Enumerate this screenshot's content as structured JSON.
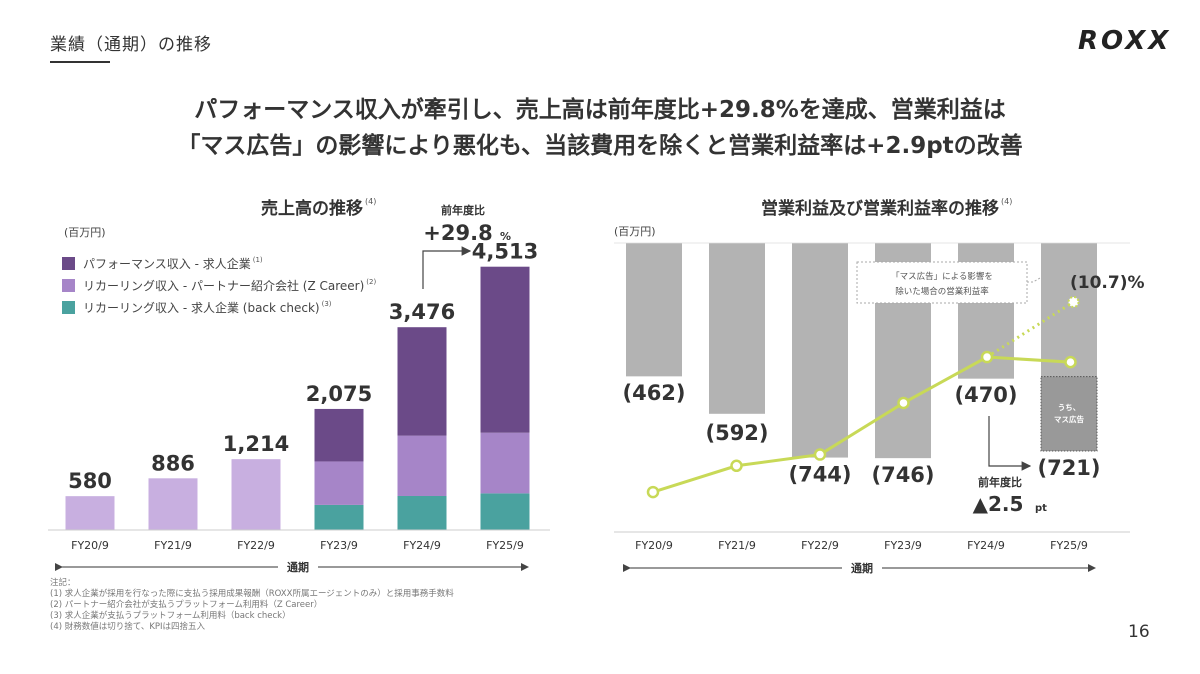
{
  "header": {
    "section_title": "業績（通期）の推移",
    "logo": "ROXX",
    "page_number": "16"
  },
  "headline": {
    "line1": "パフォーマンス収入が牽引し、売上高は前年度比+29.8%を達成、営業利益は",
    "line2": "「マス広告」の影響により悪化も、当該費用を除くと営業利益率は+2.9ptの改善"
  },
  "chart_data": [
    {
      "type": "bar",
      "stacked": true,
      "title": "売上高の推移",
      "title_note": "(4)",
      "unit": "(百万円)",
      "categories": [
        "FY20/9",
        "FY21/9",
        "FY22/9",
        "FY23/9",
        "FY24/9",
        "FY25/9"
      ],
      "series": [
        {
          "name": "パフォーマンス収入 - 求人企業",
          "note": "(1)",
          "color": "#6b4a88",
          "values": [
            0,
            0,
            0,
            900,
            1859,
            2845
          ]
        },
        {
          "name": "リカーリング収入 - パートナー紹介会社 (Z Career)",
          "note": "(2)",
          "color": "#a685c8",
          "color_fy20_22": "#c8afe0",
          "values": [
            580,
            886,
            1214,
            745,
            1034,
            1040
          ]
        },
        {
          "name": "リカーリング収入 - 求人企業 (back check)",
          "note": "(3)",
          "color": "#4aa29f",
          "values": [
            0,
            0,
            0,
            430,
            583,
            628
          ]
        }
      ],
      "totals": [
        580,
        886,
        1214,
        2075,
        3476,
        4513
      ],
      "total_labels": [
        "580",
        "886",
        "1,214",
        "2,075",
        "3,476",
        "4,513"
      ],
      "period_label": "通期",
      "annotation": {
        "label": "前年度比",
        "value": "+29.8",
        "unit": "%"
      },
      "ylim": [
        0,
        4513
      ]
    },
    {
      "type": "bar+line",
      "title": "営業利益及び営業利益率の推移",
      "title_note": "(4)",
      "unit": "(百万円)",
      "categories": [
        "FY20/9",
        "FY21/9",
        "FY22/9",
        "FY23/9",
        "FY24/9",
        "FY25/9"
      ],
      "operating_income": [
        -462,
        -592,
        -744,
        -746,
        -470,
        -721
      ],
      "operating_income_labels": [
        "(462)",
        "(592)",
        "(744)",
        "(746)",
        "(470)",
        "(721)"
      ],
      "bar_color": "#b3b3b3",
      "operating_margin_pct": [
        -79.7,
        -66.8,
        -61.3,
        -36.0,
        -13.5,
        -16.0
      ],
      "line_color": "#c8d957",
      "adjusted_margin": {
        "category": "FY25/9",
        "value": -10.7,
        "label": "(10.7)%"
      },
      "callout": {
        "line1": "「マス広告」による影響を",
        "line2": "除いた場合の営業利益率"
      },
      "mass_ad_segment": {
        "label_line1": "うち、",
        "label_line2": "マス広告",
        "approx_value": -258,
        "color": "#999999"
      },
      "period_label": "通期",
      "annotation": {
        "label": "前年度比",
        "value": "▲2.5",
        "unit": "pt"
      }
    }
  ],
  "footnotes": {
    "title": "注記：",
    "items": [
      "(1) 求人企業が採用を行なった際に支払う採用成果報酬（ROXX所属エージェントのみ）と採用事務手数料",
      "(2) パートナー紹介会社が支払うプラットフォーム利用料（Z Career）",
      "(3) 求人企業が支払うプラットフォーム利用料（back check）",
      "(4) 財務数値は切り捨て、KPIは四捨五入"
    ]
  }
}
